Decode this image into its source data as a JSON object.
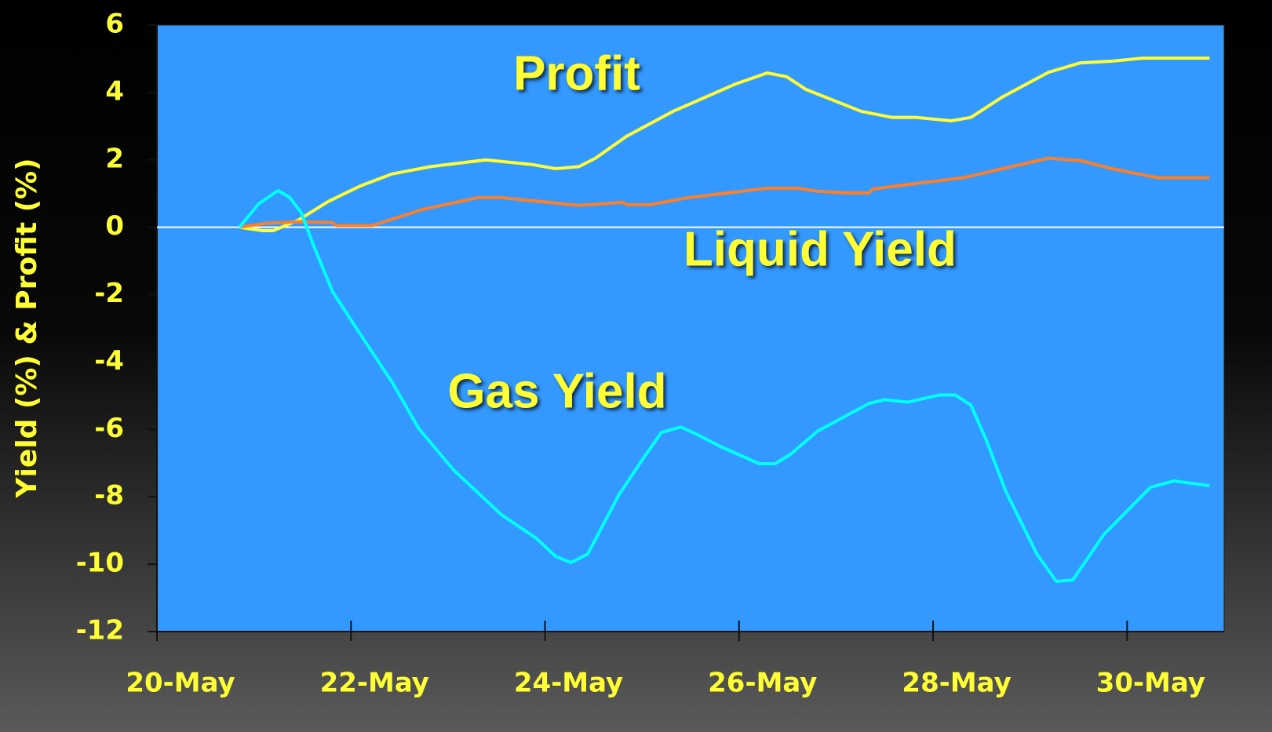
{
  "chart_data": {
    "type": "line",
    "y_label": "Yield (%) & Profit (%)",
    "xlim": [
      20,
      31
    ],
    "xticks": [
      {
        "value": 20,
        "label": "20-May"
      },
      {
        "value": 22,
        "label": "22-May"
      },
      {
        "value": 24,
        "label": "24-May"
      },
      {
        "value": 26,
        "label": "26-May"
      },
      {
        "value": 28,
        "label": "28-May"
      },
      {
        "value": 30,
        "label": "30-May"
      }
    ],
    "ylim": [
      -12,
      6
    ],
    "yticks": [
      -12,
      -10,
      -8,
      -6,
      -4,
      -2,
      0,
      2,
      4,
      6
    ],
    "series": [
      {
        "name": "Profit",
        "color": "#ffff33",
        "x": [
          20.85,
          21.09,
          21.2,
          21.45,
          21.77,
          22.1,
          22.42,
          22.82,
          23.39,
          23.87,
          24.11,
          24.35,
          24.52,
          24.84,
          25.32,
          25.97,
          26.29,
          26.49,
          26.69,
          27.26,
          27.58,
          27.82,
          28.19,
          28.39,
          28.71,
          29.19,
          29.52,
          29.84,
          30.16,
          30.85
        ],
        "values": [
          0,
          -0.1,
          -0.1,
          0.2,
          0.77,
          1.23,
          1.58,
          1.8,
          2.0,
          1.86,
          1.74,
          1.8,
          2.05,
          2.7,
          3.44,
          4.26,
          4.58,
          4.47,
          4.09,
          3.44,
          3.26,
          3.26,
          3.16,
          3.26,
          3.86,
          4.6,
          4.88,
          4.93,
          5.02,
          5.02
        ]
      },
      {
        "name": "Liquid Yield",
        "color": "#ff7f27",
        "x": [
          20.85,
          21.13,
          21.45,
          21.81,
          21.85,
          22.22,
          22.74,
          23.31,
          23.55,
          24.35,
          24.8,
          24.84,
          25.08,
          25.48,
          26.29,
          26.61,
          26.81,
          27.1,
          27.34,
          27.38,
          28.31,
          29.19,
          29.52,
          29.84,
          30.32,
          30.85
        ],
        "values": [
          0,
          0.12,
          0.16,
          0.14,
          0.05,
          0.05,
          0.53,
          0.88,
          0.88,
          0.65,
          0.74,
          0.67,
          0.67,
          0.88,
          1.16,
          1.16,
          1.07,
          1.02,
          1.02,
          1.14,
          1.47,
          2.05,
          1.98,
          1.74,
          1.47,
          1.47
        ]
      },
      {
        "name": "Gas Yield",
        "color": "#00ffff",
        "x": [
          20.85,
          21.05,
          21.25,
          21.37,
          21.49,
          21.61,
          21.81,
          22.1,
          22.42,
          22.7,
          23.06,
          23.55,
          23.91,
          24.11,
          24.27,
          24.44,
          24.76,
          25.0,
          25.2,
          25.4,
          25.56,
          25.81,
          26.21,
          26.37,
          26.53,
          26.81,
          27.34,
          27.5,
          27.74,
          28.06,
          28.23,
          28.39,
          28.55,
          28.75,
          29.07,
          29.27,
          29.44,
          29.76,
          30.0,
          30.24,
          30.48,
          30.85
        ],
        "values": [
          0,
          0.7,
          1.09,
          0.88,
          0.42,
          -0.51,
          -1.91,
          -3.19,
          -4.58,
          -5.98,
          -7.21,
          -8.53,
          -9.23,
          -9.77,
          -9.95,
          -9.7,
          -7.95,
          -6.91,
          -6.09,
          -5.93,
          -6.14,
          -6.51,
          -7.02,
          -7.02,
          -6.74,
          -6.05,
          -5.23,
          -5.12,
          -5.19,
          -4.98,
          -4.98,
          -5.28,
          -6.33,
          -7.84,
          -9.7,
          -10.51,
          -10.47,
          -9.12,
          -8.42,
          -7.72,
          -7.53,
          -7.67
        ]
      }
    ]
  }
}
